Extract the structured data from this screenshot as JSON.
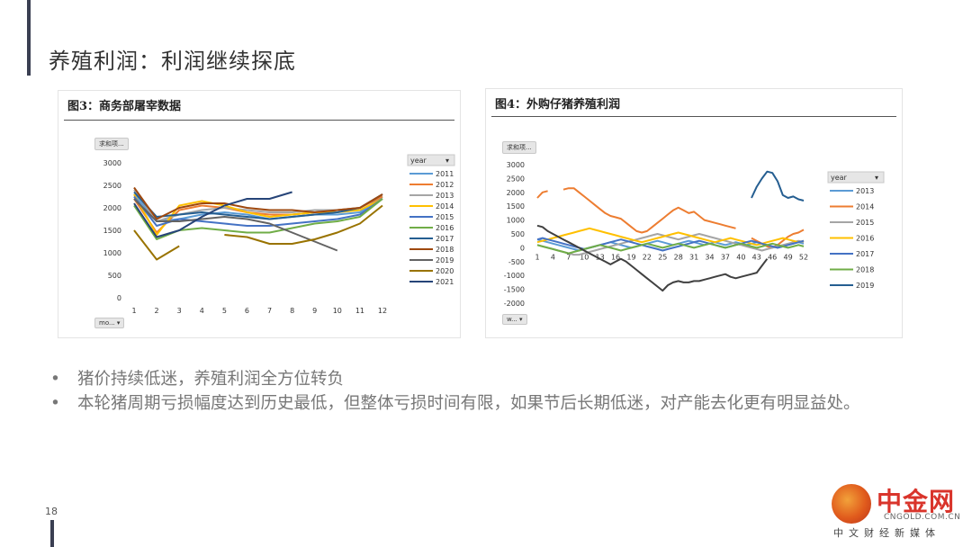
{
  "slide": {
    "title": "养殖利润：利润继续探底",
    "page_number": "18",
    "bullets": [
      "猪价持续低迷，养殖利润全方位转负",
      "本轮猪周期亏损幅度达到历史最低，但整体亏损时间有限，如果节后长期低迷，对产能去化更有明显益处。"
    ],
    "logo": {
      "brand": "中金网",
      "url": "CNGOLD.COM.CN",
      "tagline": "中文财经新媒体"
    }
  },
  "chart_data": [
    {
      "type": "line",
      "title": "图3：商务部屠宰数据",
      "pivot_value_button": "求和项...",
      "pivot_axis_button": "mo...",
      "legend_header": "year",
      "legend_position": "right",
      "x": [
        1,
        2,
        3,
        4,
        5,
        6,
        7,
        8,
        9,
        10,
        11,
        12
      ],
      "ylim": [
        0,
        3000
      ],
      "yticks": [
        0,
        500,
        1000,
        1500,
        2000,
        2500,
        3000
      ],
      "series": [
        {
          "name": "2011",
          "color": "#5b9bd5",
          "values": [
            2300,
            1700,
            1750,
            1850,
            1900,
            1850,
            1750,
            1800,
            1850,
            1850,
            1900,
            2250
          ]
        },
        {
          "name": "2012",
          "color": "#ed7d31",
          "values": [
            2200,
            1450,
            1950,
            2050,
            2000,
            1900,
            1850,
            1850,
            1900,
            1950,
            2000,
            2250
          ]
        },
        {
          "name": "2013",
          "color": "#a5a5a5",
          "values": [
            2400,
            1700,
            1850,
            1950,
            2000,
            1950,
            1900,
            1900,
            1950,
            1950,
            2000,
            2300
          ]
        },
        {
          "name": "2014",
          "color": "#ffc000",
          "values": [
            2300,
            1400,
            2050,
            2150,
            2050,
            1900,
            1800,
            1850,
            1900,
            1900,
            1950,
            2200
          ]
        },
        {
          "name": "2015",
          "color": "#4472c4",
          "values": [
            2250,
            1600,
            1750,
            1700,
            1650,
            1600,
            1600,
            1650,
            1700,
            1750,
            1850,
            2200
          ]
        },
        {
          "name": "2016",
          "color": "#70ad47",
          "values": [
            2050,
            1300,
            1500,
            1550,
            1500,
            1450,
            1450,
            1550,
            1650,
            1700,
            1800,
            2200
          ]
        },
        {
          "name": "2017",
          "color": "#255e91",
          "values": [
            2350,
            1800,
            1850,
            1900,
            1850,
            1800,
            1750,
            1800,
            1850,
            1900,
            2000,
            2300
          ]
        },
        {
          "name": "2018",
          "color": "#9e480e",
          "values": [
            2450,
            1750,
            2000,
            2100,
            2100,
            2000,
            1950,
            1950,
            1900,
            1950,
            2000,
            2300
          ]
        },
        {
          "name": "2019",
          "color": "#636363",
          "values": [
            2200,
            1700,
            1700,
            1750,
            1800,
            1750,
            1650,
            1450,
            1250,
            1050,
            null,
            null
          ]
        },
        {
          "name": "2020",
          "color": "#997300",
          "values": [
            1500,
            850,
            1150,
            null,
            1400,
            1350,
            1200,
            1200,
            1300,
            1450,
            1650,
            2050
          ]
        },
        {
          "name": "2021",
          "color": "#264478",
          "values": [
            2100,
            1350,
            1500,
            1800,
            2050,
            2200,
            2200,
            2350,
            null,
            null,
            null,
            null
          ]
        }
      ]
    },
    {
      "type": "line",
      "title": "图4：外购仔猪养殖利润",
      "pivot_value_button": "求和项...",
      "pivot_axis_button": "w...",
      "legend_header": "year",
      "legend_position": "right",
      "x": [
        1,
        2,
        3,
        4,
        5,
        6,
        7,
        8,
        9,
        10,
        11,
        12,
        13,
        14,
        15,
        16,
        17,
        18,
        19,
        20,
        21,
        22,
        23,
        24,
        25,
        26,
        27,
        28,
        29,
        30,
        31,
        32,
        33,
        34,
        35,
        36,
        37,
        38,
        39,
        40,
        41,
        42,
        43,
        44,
        45,
        46,
        47,
        48,
        49,
        50,
        51,
        52
      ],
      "xticks": [
        1,
        4,
        7,
        10,
        13,
        16,
        19,
        22,
        25,
        28,
        31,
        34,
        37,
        40,
        43,
        46,
        49,
        52
      ],
      "ylim": [
        -2000,
        3000
      ],
      "yticks": [
        -2000,
        -1500,
        -1000,
        -500,
        0,
        500,
        1000,
        1500,
        2000,
        2500,
        3000
      ],
      "series": [
        {
          "name": "2013",
          "color": "#5b9bd5",
          "values": [
            300,
            250,
            200,
            150,
            100,
            50,
            0,
            -50,
            -100,
            -50,
            0,
            50,
            100,
            150,
            200,
            150,
            100,
            50,
            0,
            50,
            100,
            150,
            200,
            250,
            200,
            150,
            100,
            150,
            200,
            250,
            200,
            150,
            100,
            150,
            200,
            150,
            100,
            150,
            200,
            150,
            100,
            150,
            200,
            150,
            100,
            50,
            0,
            50,
            100,
            150,
            200,
            150
          ]
        },
        {
          "name": "2014",
          "color": "#ed7d31",
          "values": [
            1800,
            2000,
            2050,
            null,
            null,
            2100,
            2150,
            2150,
            2000,
            1850,
            1700,
            1550,
            1400,
            1250,
            1150,
            1100,
            1050,
            900,
            750,
            600,
            550,
            600,
            750,
            900,
            1050,
            1200,
            1350,
            1450,
            1350,
            1250,
            1300,
            1150,
            1000,
            950,
            900,
            850,
            800,
            750,
            700,
            null,
            null,
            350,
            250,
            150,
            50,
            0,
            100,
            250,
            400,
            500,
            550,
            650
          ]
        },
        {
          "name": "2015",
          "color": "#a5a5a5",
          "values": [
            100,
            50,
            0,
            -50,
            -100,
            -150,
            -200,
            -250,
            -250,
            -200,
            -150,
            -100,
            -50,
            0,
            50,
            100,
            150,
            200,
            250,
            300,
            350,
            400,
            450,
            500,
            450,
            400,
            350,
            300,
            350,
            400,
            450,
            500,
            450,
            400,
            350,
            300,
            250,
            200,
            150,
            100,
            50,
            0,
            -50,
            -100,
            -50,
            0,
            50,
            100,
            150,
            200,
            250,
            200
          ]
        },
        {
          "name": "2016",
          "color": "#ffc000",
          "values": [
            200,
            250,
            300,
            350,
            400,
            450,
            500,
            550,
            600,
            650,
            700,
            650,
            600,
            550,
            500,
            450,
            400,
            350,
            300,
            250,
            200,
            250,
            300,
            350,
            400,
            450,
            500,
            550,
            500,
            450,
            400,
            350,
            300,
            250,
            200,
            250,
            300,
            350,
            300,
            250,
            200,
            150,
            100,
            150,
            200,
            250,
            300,
            350,
            300,
            250,
            200,
            250
          ]
        },
        {
          "name": "2017",
          "color": "#4472c4",
          "values": [
            300,
            350,
            300,
            250,
            200,
            150,
            100,
            50,
            0,
            -50,
            0,
            50,
            100,
            150,
            200,
            250,
            300,
            250,
            200,
            150,
            100,
            50,
            0,
            -50,
            -100,
            -50,
            0,
            50,
            100,
            150,
            200,
            250,
            200,
            150,
            100,
            50,
            0,
            50,
            100,
            150,
            200,
            250,
            200,
            150,
            100,
            50,
            0,
            50,
            100,
            150,
            200,
            250
          ]
        },
        {
          "name": "2018",
          "color": "#70ad47",
          "values": [
            100,
            50,
            0,
            -50,
            -100,
            -150,
            -200,
            -150,
            -100,
            -50,
            0,
            50,
            100,
            50,
            0,
            -50,
            -100,
            -50,
            0,
            50,
            100,
            150,
            100,
            50,
            0,
            50,
            100,
            150,
            100,
            50,
            0,
            50,
            100,
            150,
            100,
            50,
            0,
            50,
            100,
            150,
            100,
            50,
            0,
            50,
            100,
            150,
            100,
            50,
            0,
            50,
            100,
            50
          ]
        },
        {
          "name": "2019",
          "color": "#255e91",
          "values": [
            null,
            null,
            null,
            null,
            null,
            null,
            null,
            null,
            null,
            null,
            null,
            null,
            null,
            null,
            null,
            null,
            null,
            null,
            null,
            null,
            null,
            null,
            null,
            null,
            null,
            null,
            null,
            null,
            null,
            null,
            null,
            null,
            null,
            null,
            null,
            null,
            null,
            null,
            null,
            null,
            null,
            1800,
            2200,
            2500,
            2750,
            2700,
            2400,
            1900,
            1800,
            1850,
            1750,
            1700
          ]
        },
        {
          "name": "",
          "color": "#404040",
          "values": [
            800,
            750,
            600,
            500,
            400,
            300,
            200,
            100,
            0,
            -100,
            -200,
            -300,
            -400,
            -500,
            -600,
            -500,
            -400,
            -500,
            -650,
            -800,
            -950,
            -1100,
            -1250,
            -1400,
            -1550,
            -1350,
            -1250,
            -1200,
            -1250,
            -1250,
            -1200,
            -1200,
            -1150,
            -1100,
            -1050,
            -1000,
            -950,
            -1050,
            -1100,
            -1050,
            -1000,
            -950,
            -900,
            -650,
            -400,
            null,
            null,
            null,
            null,
            null,
            null,
            null
          ]
        }
      ],
      "extra_series_note_hidden": null
    }
  ]
}
